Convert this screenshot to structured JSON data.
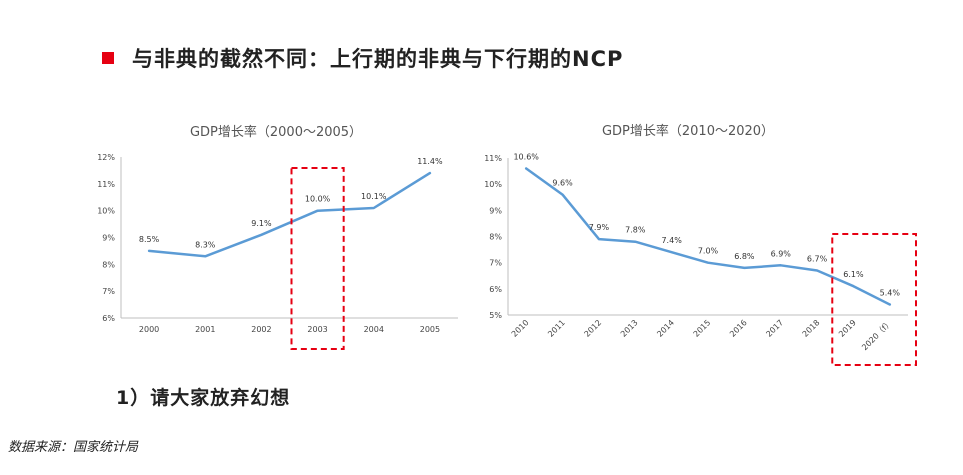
{
  "heading": {
    "text": "与非典的截然不同：上行期的非典与下行期的NCP",
    "bullet_color": "#e60012"
  },
  "subheading": "1）请大家放弃幻想",
  "source": "数据来源：国家统计局",
  "chart_data": [
    {
      "type": "line",
      "title": "GDP增长率（2000～2005）",
      "categories": [
        "2000",
        "2001",
        "2002",
        "2003",
        "2004",
        "2005"
      ],
      "series": [
        {
          "values": [
            8.5,
            8.3,
            9.1,
            10.0,
            10.1,
            11.4
          ],
          "labels": [
            "8.5%",
            "8.3%",
            "9.1%",
            "10.0%",
            "10.1%",
            "11.4%"
          ]
        }
      ],
      "ylim": [
        6,
        12
      ],
      "yticks": [
        "6%",
        "7%",
        "8%",
        "9%",
        "10%",
        "11%",
        "12%"
      ],
      "highlight_category": "2003",
      "line_color": "#5b9bd5",
      "highlight_color": "#e60012",
      "grid": false
    },
    {
      "type": "line",
      "title": "GDP增长率（2010～2020）",
      "categories": [
        "2010",
        "2011",
        "2012",
        "2013",
        "2014",
        "2015",
        "2016",
        "2017",
        "2018",
        "2019",
        "2020（f）"
      ],
      "series": [
        {
          "values": [
            10.6,
            9.6,
            7.9,
            7.8,
            7.4,
            7.0,
            6.8,
            6.9,
            6.7,
            6.1,
            5.4
          ],
          "labels": [
            "10.6%",
            "9.6%",
            "7.9%",
            "7.8%",
            "7.4%",
            "7.0%",
            "6.8%",
            "6.9%",
            "6.7%",
            "6.1%",
            "5.4%"
          ]
        }
      ],
      "ylim": [
        5,
        11
      ],
      "yticks": [
        "5%",
        "6%",
        "7%",
        "8%",
        "9%",
        "10%",
        "11%"
      ],
      "highlight_categories": [
        "2019",
        "2020（f）"
      ],
      "line_color": "#5b9bd5",
      "highlight_color": "#e60012",
      "grid": false
    }
  ]
}
